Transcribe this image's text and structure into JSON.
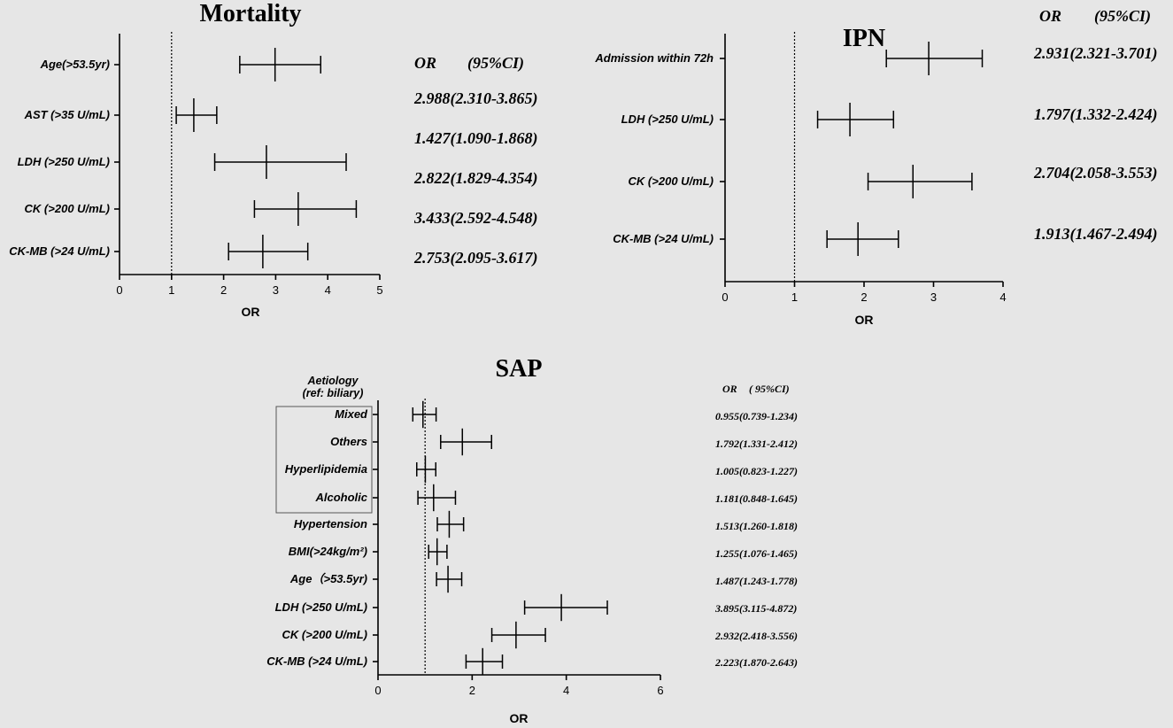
{
  "chart_data": [
    {
      "type": "forest",
      "title": "Mortality",
      "xlabel": "OR",
      "xlim": [
        0,
        5
      ],
      "xticks": [
        0,
        1,
        2,
        3,
        4,
        5
      ],
      "reference_line": 1,
      "or_header": "OR",
      "ci_header": "(95%CI)",
      "rows": [
        {
          "label": "Age(>53.5yr)",
          "or": 2.988,
          "lower": 2.31,
          "upper": 3.865,
          "text": "2.988(2.310-3.865)"
        },
        {
          "label": "AST (>35 U/mL)",
          "or": 1.427,
          "lower": 1.09,
          "upper": 1.868,
          "text": "1.427(1.090-1.868)"
        },
        {
          "label": "LDH (>250 U/mL)",
          "or": 2.822,
          "lower": 1.829,
          "upper": 4.354,
          "text": "2.822(1.829-4.354)"
        },
        {
          "label": "CK (>200 U/mL)",
          "or": 3.433,
          "lower": 2.592,
          "upper": 4.548,
          "text": "3.433(2.592-4.548)"
        },
        {
          "label": "CK-MB (>24 U/mL)",
          "or": 2.753,
          "lower": 2.095,
          "upper": 3.617,
          "text": "2.753(2.095-3.617)"
        }
      ]
    },
    {
      "type": "forest",
      "title": "IPN",
      "xlabel": "OR",
      "xlim": [
        0,
        4
      ],
      "xticks": [
        0,
        1,
        2,
        3,
        4
      ],
      "reference_line": 1,
      "or_header": "OR",
      "ci_header": "(95%CI)",
      "rows": [
        {
          "label": "Admission within 72h",
          "or": 2.931,
          "lower": 2.321,
          "upper": 3.701,
          "text": "2.931(2.321-3.701)"
        },
        {
          "label": "LDH (>250 U/mL)",
          "or": 1.797,
          "lower": 1.332,
          "upper": 2.424,
          "text": "1.797(1.332-2.424)"
        },
        {
          "label": "CK (>200 U/mL)",
          "or": 2.704,
          "lower": 2.058,
          "upper": 3.553,
          "text": "2.704(2.058-3.553)"
        },
        {
          "label": "CK-MB (>24 U/mL)",
          "or": 1.913,
          "lower": 1.467,
          "upper": 2.494,
          "text": "1.913(1.467-2.494)"
        }
      ]
    },
    {
      "type": "forest",
      "title": "SAP",
      "xlabel": "OR",
      "xlim": [
        0,
        6
      ],
      "xticks": [
        0,
        2,
        4,
        6
      ],
      "reference_line": 1,
      "or_header": "OR",
      "ci_header": "( 95%CI)",
      "group_label_line1": "Aetiology",
      "group_label_line2": "(ref: biliary)",
      "rows": [
        {
          "label": "Mixed",
          "or": 0.955,
          "lower": 0.739,
          "upper": 1.234,
          "text": "0.955(0.739-1.234)"
        },
        {
          "label": "Others",
          "or": 1.792,
          "lower": 1.331,
          "upper": 2.412,
          "text": "1.792(1.331-2.412)"
        },
        {
          "label": "Hyperlipidemia",
          "or": 1.005,
          "lower": 0.823,
          "upper": 1.227,
          "text": "1.005(0.823-1.227)"
        },
        {
          "label": "Alcoholic",
          "or": 1.181,
          "lower": 0.848,
          "upper": 1.645,
          "text": "1.181(0.848-1.645)"
        },
        {
          "label": "Hypertension",
          "or": 1.513,
          "lower": 1.26,
          "upper": 1.818,
          "text": "1.513(1.260-1.818)"
        },
        {
          "label": "BMI(>24kg/m²)",
          "or": 1.255,
          "lower": 1.076,
          "upper": 1.465,
          "text": "1.255(1.076-1.465)"
        },
        {
          "label": "Age（>53.5yr)",
          "or": 1.487,
          "lower": 1.243,
          "upper": 1.778,
          "text": "1.487(1.243-1.778)"
        },
        {
          "label": "LDH (>250 U/mL)",
          "or": 3.895,
          "lower": 3.115,
          "upper": 4.872,
          "text": "3.895(3.115-4.872)"
        },
        {
          "label": "CK (>200 U/mL)",
          "or": 2.932,
          "lower": 2.418,
          "upper": 3.556,
          "text": "2.932(2.418-3.556)"
        },
        {
          "label": "CK-MB (>24 U/mL)",
          "or": 2.223,
          "lower": 1.87,
          "upper": 2.643,
          "text": "2.223(1.870-2.643)"
        }
      ]
    }
  ]
}
